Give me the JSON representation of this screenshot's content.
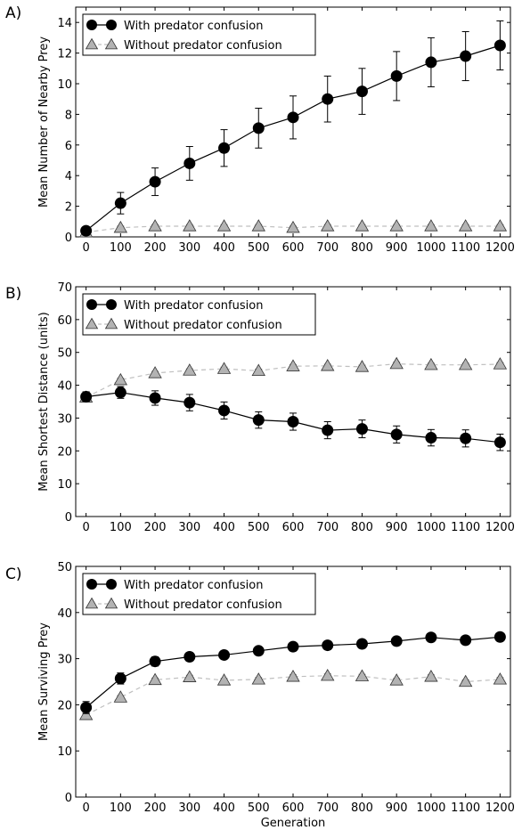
{
  "chart_data": [
    {
      "panel_label": "A)",
      "type": "line",
      "ylabel": "Mean Number of Nearby Prey",
      "xlabel": "",
      "x": [
        0,
        100,
        200,
        300,
        400,
        500,
        600,
        700,
        800,
        900,
        1000,
        1100,
        1200
      ],
      "xlim": [
        -30,
        1230
      ],
      "ylim": [
        0,
        15
      ],
      "yticks": [
        0,
        2,
        4,
        6,
        8,
        10,
        12,
        14
      ],
      "legend_position": "top-left",
      "series": [
        {
          "name": "With predator confusion",
          "marker": "circle",
          "line": "solid",
          "values": [
            0.4,
            2.2,
            3.6,
            4.8,
            5.8,
            7.1,
            7.8,
            9.0,
            9.5,
            10.5,
            11.4,
            11.8,
            12.5
          ],
          "errors": [
            0.2,
            0.7,
            0.9,
            1.1,
            1.2,
            1.3,
            1.4,
            1.5,
            1.5,
            1.6,
            1.6,
            1.6,
            1.6
          ]
        },
        {
          "name": "Without predator confusion",
          "marker": "triangle",
          "line": "dashed",
          "values": [
            0.3,
            0.6,
            0.7,
            0.7,
            0.7,
            0.7,
            0.6,
            0.7,
            0.7,
            0.7,
            0.7,
            0.7,
            0.7
          ],
          "errors": [
            0.1,
            0.1,
            0.1,
            0.1,
            0.1,
            0.1,
            0.1,
            0.1,
            0.1,
            0.1,
            0.1,
            0.1,
            0.1
          ]
        }
      ]
    },
    {
      "panel_label": "B)",
      "type": "line",
      "ylabel": "Mean Shortest Distance (units)",
      "xlabel": "",
      "x": [
        0,
        100,
        200,
        300,
        400,
        500,
        600,
        700,
        800,
        900,
        1000,
        1100,
        1200
      ],
      "xlim": [
        -30,
        1230
      ],
      "ylim": [
        0,
        70
      ],
      "yticks": [
        0,
        10,
        20,
        30,
        40,
        50,
        60,
        70
      ],
      "legend_position": "top-left",
      "series": [
        {
          "name": "With predator confusion",
          "marker": "circle",
          "line": "solid",
          "values": [
            36.5,
            37.8,
            36.1,
            34.7,
            32.3,
            29.4,
            28.9,
            26.3,
            26.7,
            25.0,
            24.0,
            23.8,
            22.6
          ],
          "errors": [
            1.5,
            1.8,
            2.2,
            2.5,
            2.6,
            2.5,
            2.6,
            2.6,
            2.7,
            2.6,
            2.5,
            2.6,
            2.5
          ]
        },
        {
          "name": "Without predator confusion",
          "marker": "triangle",
          "line": "dashed",
          "values": [
            36.3,
            41.6,
            43.7,
            44.5,
            45.0,
            44.4,
            45.8,
            45.9,
            45.6,
            46.5,
            46.2,
            46.2,
            46.4
          ],
          "errors": [
            0.5,
            0.5,
            0.5,
            0.5,
            0.5,
            0.5,
            0.5,
            0.5,
            0.5,
            0.5,
            0.5,
            0.5,
            0.5
          ]
        }
      ]
    },
    {
      "panel_label": "C)",
      "type": "line",
      "ylabel": "Mean Surviving Prey",
      "xlabel": "Generation",
      "x": [
        0,
        100,
        200,
        300,
        400,
        500,
        600,
        700,
        800,
        900,
        1000,
        1100,
        1200
      ],
      "xlim": [
        -30,
        1230
      ],
      "ylim": [
        0,
        50
      ],
      "yticks": [
        0,
        10,
        20,
        30,
        40,
        50
      ],
      "legend_position": "top-left",
      "series": [
        {
          "name": "With predator confusion",
          "marker": "circle",
          "line": "solid",
          "values": [
            19.4,
            25.7,
            29.4,
            30.4,
            30.8,
            31.7,
            32.6,
            32.9,
            33.2,
            33.8,
            34.6,
            34.0,
            34.7
          ],
          "errors": [
            1.3,
            1.2,
            1.0,
            0.9,
            0.8,
            0.8,
            0.9,
            0.9,
            0.9,
            0.9,
            0.8,
            0.9,
            0.8
          ]
        },
        {
          "name": "Without predator confusion",
          "marker": "triangle",
          "line": "dashed",
          "values": [
            17.8,
            21.6,
            25.4,
            26.0,
            25.3,
            25.5,
            26.1,
            26.3,
            26.2,
            25.3,
            26.1,
            25.0,
            25.5
          ],
          "errors": [
            0.4,
            0.4,
            0.4,
            0.4,
            0.4,
            0.4,
            0.4,
            0.4,
            0.4,
            0.4,
            0.4,
            0.4,
            0.4
          ]
        }
      ]
    }
  ],
  "colors": {
    "with_marker": "#000000",
    "without_marker": "#b3b3b3",
    "without_line": "#bfbfbf",
    "axis": "#000000"
  }
}
